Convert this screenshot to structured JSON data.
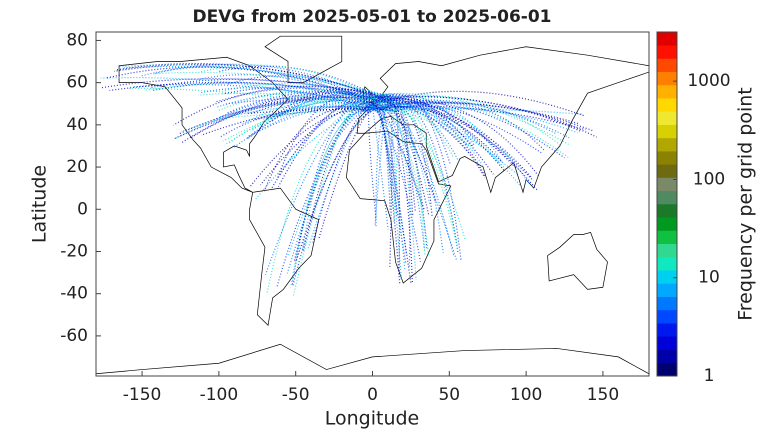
{
  "chart_data": {
    "type": "map",
    "title": "DEVG from 2025-05-01 to 2025-06-01",
    "x_label": "Longitude",
    "y_label": "Latitude",
    "xlim": [
      -180,
      180
    ],
    "ylim": [
      -79,
      84
    ],
    "xticks": [
      -150,
      -100,
      -50,
      0,
      50,
      100,
      150
    ],
    "yticks": [
      -60,
      -40,
      -20,
      0,
      20,
      40,
      60,
      80
    ],
    "colorbar": {
      "label": "Frequency per grid point",
      "log_scale": true,
      "lim": [
        1,
        3162
      ],
      "ticks": [
        1,
        10,
        100,
        1000
      ],
      "colormap": [
        "#00006e",
        "#0000a8",
        "#0000d8",
        "#0018f0",
        "#0048ff",
        "#0078ff",
        "#00a8ff",
        "#00d0f0",
        "#10e8c0",
        "#30d890",
        "#10c040",
        "#009a20",
        "#1a7a2a",
        "#508a60",
        "#7a8a68",
        "#6e6a10",
        "#8a8200",
        "#b0a800",
        "#d8d000",
        "#f0e830",
        "#ffd800",
        "#ffb000",
        "#ff8000",
        "#ff4800",
        "#ff1000",
        "#e00000"
      ]
    }
  }
}
